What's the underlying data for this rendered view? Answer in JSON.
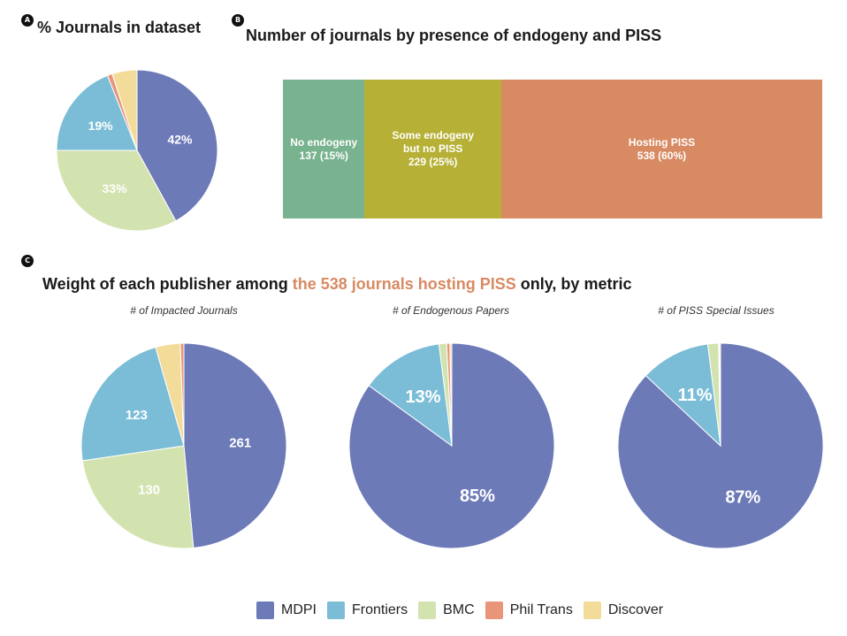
{
  "colors": {
    "MDPI": "#6d7ab8",
    "Frontiers": "#7bbdd6",
    "BMC": "#d3e3b0",
    "Phil Trans": "#e8957a",
    "Discover": "#f3dc9a",
    "no_endogeny": "#78b28f",
    "some_endogeny": "#b6b136",
    "hosting_piss": "#d88a62",
    "highlight_text": "#d88a62"
  },
  "panel_a": {
    "badge": "A",
    "title": "% Journals in dataset"
  },
  "panel_b": {
    "badge": "B",
    "title": "Number of journals by presence of endogeny and PISS"
  },
  "panel_c": {
    "badge": "C",
    "title_prefix": "Weight of each publisher among ",
    "title_highlight": "the 538 journals hosting PISS",
    "title_suffix": " only, by metric"
  },
  "legend": {
    "items": [
      {
        "label": "MDPI",
        "color_key": "MDPI"
      },
      {
        "label": "Frontiers",
        "color_key": "Frontiers"
      },
      {
        "label": "BMC",
        "color_key": "BMC"
      },
      {
        "label": "Phil Trans",
        "color_key": "Phil Trans"
      },
      {
        "label": "Discover",
        "color_key": "Discover"
      }
    ]
  },
  "chart_data": [
    {
      "type": "pie",
      "id": "journals_in_dataset",
      "title": "% Journals in dataset",
      "slices": [
        {
          "label": "MDPI",
          "value": 42,
          "text": "42%"
        },
        {
          "label": "BMC",
          "value": 33,
          "text": "33%"
        },
        {
          "label": "Frontiers",
          "value": 19,
          "text": "19%"
        },
        {
          "label": "Phil Trans",
          "value": 1,
          "text": ""
        },
        {
          "label": "Discover",
          "value": 5,
          "text": ""
        }
      ]
    },
    {
      "type": "bar",
      "id": "stacked_endogeny_piss",
      "title": "Number of journals by presence of endogeny and PISS",
      "orientation": "horizontal-stacked",
      "segments": [
        {
          "label_lines": [
            "No endogeny",
            "137 (15%)"
          ],
          "value": 137,
          "percent": 15,
          "color_key": "no_endogeny"
        },
        {
          "label_lines": [
            "Some endogeny",
            "but no PISS",
            "229 (25%)"
          ],
          "value": 229,
          "percent": 25,
          "color_key": "some_endogeny"
        },
        {
          "label_lines": [
            "Hosting PISS",
            "538 (60%)"
          ],
          "value": 538,
          "percent": 60,
          "color_key": "hosting_piss"
        }
      ]
    },
    {
      "type": "pie",
      "id": "impacted_journals",
      "title": "# of Impacted Journals",
      "slices": [
        {
          "label": "MDPI",
          "value": 261,
          "text": "261"
        },
        {
          "label": "BMC",
          "value": 130,
          "text": "130"
        },
        {
          "label": "Frontiers",
          "value": 123,
          "text": "123"
        },
        {
          "label": "Discover",
          "value": 21,
          "text": ""
        },
        {
          "label": "Phil Trans",
          "value": 3,
          "text": ""
        }
      ]
    },
    {
      "type": "pie",
      "id": "endogenous_papers",
      "title": "# of Endogenous Papers",
      "slices": [
        {
          "label": "MDPI",
          "value": 85,
          "text": "85%"
        },
        {
          "label": "Frontiers",
          "value": 13,
          "text": "13%"
        },
        {
          "label": "BMC",
          "value": 1.2,
          "text": ""
        },
        {
          "label": "Phil Trans",
          "value": 0.5,
          "text": ""
        },
        {
          "label": "Discover",
          "value": 0.3,
          "text": ""
        }
      ]
    },
    {
      "type": "pie",
      "id": "piss_special_issues",
      "title": "# of PISS Special Issues",
      "slices": [
        {
          "label": "MDPI",
          "value": 87,
          "text": "87%"
        },
        {
          "label": "Frontiers",
          "value": 11,
          "text": "11%"
        },
        {
          "label": "BMC",
          "value": 1.7,
          "text": ""
        },
        {
          "label": "Phil Trans",
          "value": 0.1,
          "text": ""
        },
        {
          "label": "Discover",
          "value": 0.2,
          "text": ""
        }
      ]
    }
  ]
}
